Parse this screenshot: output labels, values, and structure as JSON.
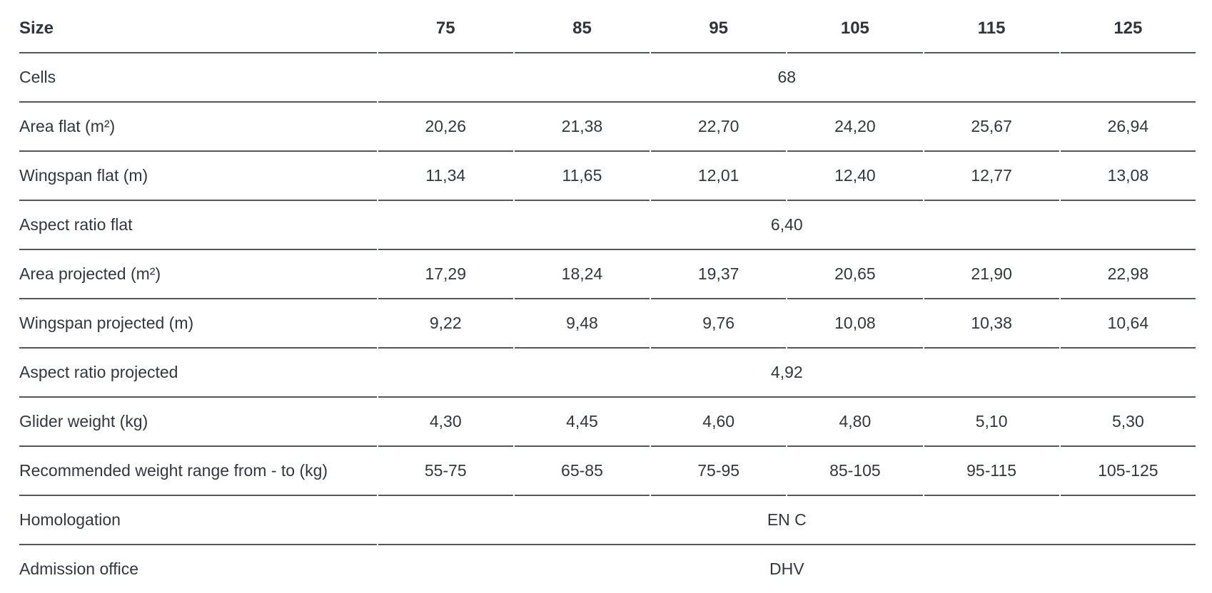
{
  "table": {
    "header_label": "Size",
    "columns": [
      "75",
      "85",
      "95",
      "105",
      "115",
      "125"
    ],
    "rows": [
      {
        "label": "Cells",
        "span_value": "68"
      },
      {
        "label": "Area flat (m²)",
        "values": [
          "20,26",
          "21,38",
          "22,70",
          "24,20",
          "25,67",
          "26,94"
        ]
      },
      {
        "label": "Wingspan flat (m)",
        "values": [
          "11,34",
          "11,65",
          "12,01",
          "12,40",
          "12,77",
          "13,08"
        ]
      },
      {
        "label": "Aspect ratio flat",
        "span_value": "6,40"
      },
      {
        "label": "Area projected (m²)",
        "values": [
          "17,29",
          "18,24",
          "19,37",
          "20,65",
          "21,90",
          "22,98"
        ]
      },
      {
        "label": "Wingspan projected (m)",
        "values": [
          "9,22",
          "9,48",
          "9,76",
          "10,08",
          "10,38",
          "10,64"
        ]
      },
      {
        "label": "Aspect ratio projected",
        "span_value": "4,92"
      },
      {
        "label": "Glider weight (kg)",
        "values": [
          "4,30",
          "4,45",
          "4,60",
          "4,80",
          "5,10",
          "5,30"
        ]
      },
      {
        "label": "Recommended weight range from - to (kg)",
        "values": [
          "55-75",
          "65-85",
          "75-95",
          "85-105",
          "95-115",
          "105-125"
        ]
      },
      {
        "label": "Homologation",
        "span_value": "EN C"
      },
      {
        "label": "Admission office",
        "span_value": "DHV"
      }
    ],
    "colors": {
      "text": "#33373d",
      "header_text": "#2f333a",
      "rule_line": "#53565b",
      "background": "#ffffff"
    }
  }
}
